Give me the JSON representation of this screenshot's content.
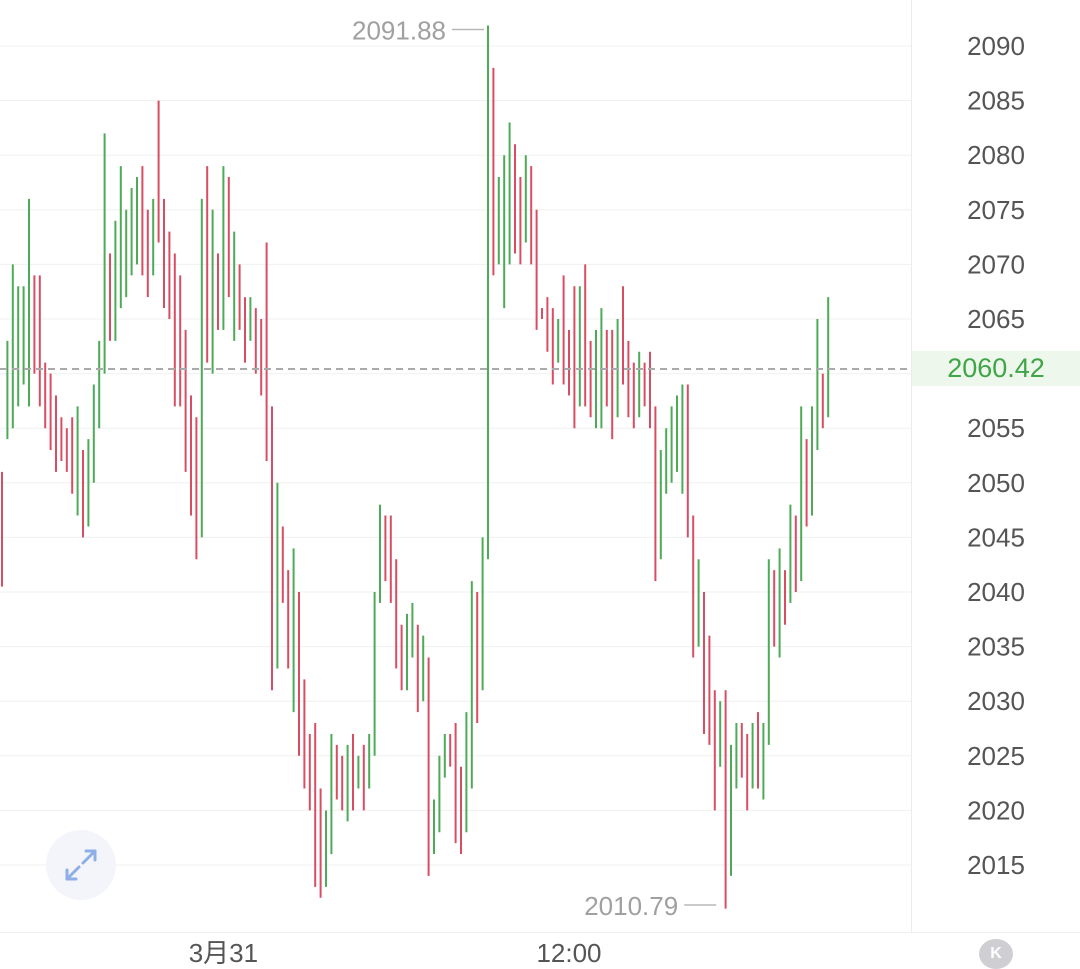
{
  "chart_data": {
    "type": "ohlc",
    "title": "",
    "y_ticks": [
      2015,
      2020,
      2025,
      2030,
      2035,
      2040,
      2045,
      2050,
      2055,
      2060,
      2065,
      2070,
      2075,
      2080,
      2085,
      2090
    ],
    "ylim": [
      2005.5,
      2093.5
    ],
    "x_labels": [
      {
        "label": "3月31",
        "index": 41
      },
      {
        "label": "12:00",
        "index": 105
      }
    ],
    "grid": "horizontal",
    "current_price": 2060.42,
    "current_price_label": "2060.42",
    "high_marker": {
      "label": "2091.88",
      "value": 2091.88,
      "index": 90
    },
    "low_marker": {
      "label": "2010.79",
      "value": 2010.79,
      "index": 133
    },
    "up_color": "#4daa57",
    "down_color": "#d94d63",
    "bars": [
      [
        2047,
        2040.5,
        2051,
        2041.5
      ],
      [
        2058,
        2054,
        2063,
        2060
      ],
      [
        2061,
        2055,
        2070,
        2063
      ],
      [
        2063,
        2057,
        2068,
        2065
      ],
      [
        2064,
        2059,
        2068,
        2066
      ],
      [
        2065,
        2057,
        2076,
        2068
      ],
      [
        2068,
        2060,
        2069,
        2061
      ],
      [
        2064,
        2057,
        2069,
        2059
      ],
      [
        2059,
        2055,
        2061,
        2057.5
      ],
      [
        2057.5,
        2053,
        2060,
        2055
      ],
      [
        2055,
        2051,
        2058,
        2054
      ],
      [
        2054,
        2052,
        2056,
        2053
      ],
      [
        2053,
        2051,
        2055,
        2052.5
      ],
      [
        2052.5,
        2049,
        2056,
        2050
      ],
      [
        2050,
        2047,
        2057,
        2053
      ],
      [
        2053,
        2045,
        2053,
        2049
      ],
      [
        2050,
        2046,
        2054,
        2052
      ],
      [
        2052,
        2050,
        2059,
        2057
      ],
      [
        2057,
        2055,
        2063,
        2062
      ],
      [
        2062,
        2060,
        2082,
        2077
      ],
      [
        2068,
        2063,
        2071,
        2066
      ],
      [
        2066,
        2063,
        2074,
        2071
      ],
      [
        2070,
        2066,
        2079,
        2072
      ],
      [
        2072,
        2067,
        2075,
        2073
      ],
      [
        2073,
        2069,
        2077,
        2074
      ],
      [
        2074,
        2070,
        2078,
        2075
      ],
      [
        2075,
        2069,
        2079,
        2073
      ],
      [
        2073,
        2067,
        2075,
        2072
      ],
      [
        2072,
        2069,
        2076,
        2074
      ],
      [
        2074,
        2072,
        2085,
        2073
      ],
      [
        2073,
        2066,
        2076,
        2071
      ],
      [
        2071,
        2065,
        2073,
        2070
      ],
      [
        2070,
        2057,
        2071,
        2059
      ],
      [
        2059,
        2057,
        2069,
        2058
      ],
      [
        2058,
        2051,
        2064,
        2053
      ],
      [
        2053,
        2047,
        2058,
        2049
      ],
      [
        2049,
        2043,
        2056,
        2045
      ],
      [
        2045,
        2048,
        2076,
        2075
      ],
      [
        2075,
        2061,
        2079,
        2063
      ],
      [
        2063,
        2060,
        2075,
        2070
      ],
      [
        2070,
        2064,
        2071,
        2066
      ],
      [
        2066,
        2064,
        2079,
        2077
      ],
      [
        2077,
        2067,
        2078,
        2068
      ],
      [
        2068,
        2063,
        2073,
        2070
      ],
      [
        2070,
        2064,
        2070,
        2067
      ],
      [
        2067,
        2061,
        2067,
        2063
      ],
      [
        2063,
        2065,
        2067,
        2066
      ],
      [
        2066,
        2060,
        2066,
        2061
      ],
      [
        2061,
        2058,
        2065,
        2059
      ],
      [
        2059,
        2052,
        2072,
        2055
      ],
      [
        2055,
        2031,
        2057,
        2033
      ],
      [
        2033,
        2035,
        2050,
        2043
      ],
      [
        2043,
        2039,
        2046,
        2041
      ],
      [
        2041,
        2033,
        2042,
        2034
      ],
      [
        2034,
        2029,
        2044,
        2039
      ],
      [
        2039,
        2025,
        2040,
        2030
      ],
      [
        2030,
        2022,
        2032,
        2026
      ],
      [
        2026,
        2020,
        2027,
        2022
      ],
      [
        2022,
        2013,
        2028,
        2017
      ],
      [
        2017,
        2012,
        2022,
        2014
      ],
      [
        2014,
        2013,
        2020,
        2016
      ],
      [
        2016,
        2018,
        2027,
        2025
      ],
      [
        2025,
        2021,
        2026,
        2023
      ],
      [
        2023,
        2020,
        2025,
        2022
      ],
      [
        2022,
        2019,
        2026,
        2024
      ],
      [
        2024,
        2020,
        2027,
        2023
      ],
      [
        2023,
        2022,
        2025,
        2024
      ],
      [
        2024,
        2020,
        2026,
        2022
      ],
      [
        2022,
        2024,
        2027,
        2025
      ],
      [
        2025,
        2026,
        2040,
        2039
      ],
      [
        2039,
        2044,
        2048,
        2045
      ],
      [
        2045,
        2041,
        2047,
        2043
      ],
      [
        2043,
        2039,
        2047,
        2041
      ],
      [
        2041,
        2033,
        2043,
        2035
      ],
      [
        2035,
        2031,
        2037,
        2033
      ],
      [
        2033,
        2031,
        2038,
        2036
      ],
      [
        2036,
        2034,
        2039,
        2037
      ],
      [
        2037,
        2029,
        2037,
        2032
      ],
      [
        2032,
        2030,
        2036,
        2034
      ],
      [
        2034,
        2014,
        2032,
        2016
      ],
      [
        2016,
        2017,
        2021,
        2018
      ],
      [
        2018,
        2021,
        2025,
        2023
      ],
      [
        2023,
        2023,
        2027,
        2026
      ],
      [
        2026,
        2024,
        2027,
        2025
      ],
      [
        2025,
        2017,
        2028,
        2019
      ],
      [
        2019,
        2016,
        2024,
        2018
      ],
      [
        2018,
        2020,
        2029,
        2023
      ],
      [
        2023,
        2022,
        2041,
        2040
      ],
      [
        2040,
        2028,
        2039,
        2031
      ],
      [
        2031,
        2037,
        2045,
        2043
      ],
      [
        2043,
        2058,
        2091.88,
        2088
      ],
      [
        2088,
        2069,
        2082,
        2071
      ],
      [
        2071,
        2070,
        2078,
        2072
      ],
      [
        2072,
        2066,
        2080,
        2074
      ],
      [
        2074,
        2070,
        2083,
        2078
      ],
      [
        2078,
        2071,
        2081,
        2076
      ],
      [
        2076,
        2070,
        2078,
        2073
      ],
      [
        2073,
        2072,
        2080,
        2077
      ],
      [
        2077,
        2070,
        2079,
        2074
      ],
      [
        2074,
        2064,
        2075,
        2066
      ],
      [
        2066,
        2065,
        2066,
        2065.5
      ],
      [
        2065.5,
        2062,
        2067,
        2064
      ],
      [
        2064,
        2059,
        2066,
        2061
      ],
      [
        2061,
        2061,
        2065,
        2063
      ],
      [
        2063,
        2059,
        2069,
        2062
      ],
      [
        2062,
        2058,
        2064,
        2060
      ],
      [
        2060,
        2055,
        2068,
        2057
      ],
      [
        2057,
        2058,
        2068,
        2065
      ],
      [
        2065,
        2057,
        2070,
        2059
      ],
      [
        2059,
        2056,
        2063,
        2058
      ],
      [
        2058,
        2055,
        2064,
        2058.5
      ],
      [
        2058.5,
        2055,
        2066,
        2061
      ],
      [
        2061,
        2057,
        2064,
        2059
      ],
      [
        2059,
        2054,
        2064,
        2056
      ],
      [
        2056,
        2057,
        2065,
        2063
      ],
      [
        2063,
        2059,
        2068,
        2061
      ],
      [
        2061,
        2056,
        2063,
        2058
      ],
      [
        2058,
        2055,
        2061,
        2057
      ],
      [
        2057,
        2056,
        2062,
        2059
      ],
      [
        2059,
        2057,
        2061,
        2058
      ],
      [
        2058,
        2055,
        2062,
        2056
      ],
      [
        2056,
        2041,
        2057,
        2043
      ],
      [
        2043,
        2047,
        2053,
        2050
      ],
      [
        2050,
        2049,
        2055,
        2052
      ],
      [
        2052,
        2050,
        2057,
        2054
      ],
      [
        2054,
        2051,
        2058,
        2055
      ],
      [
        2055,
        2049,
        2059,
        2057
      ],
      [
        2057,
        2045,
        2059,
        2047
      ],
      [
        2047,
        2034,
        2047,
        2038
      ],
      [
        2038,
        2035,
        2043,
        2040
      ],
      [
        2040,
        2027,
        2037,
        2033
      ],
      [
        2033,
        2026,
        2036,
        2030
      ],
      [
        2030,
        2020,
        2031,
        2025
      ],
      [
        2025,
        2024,
        2030,
        2027
      ],
      [
        2027,
        2011,
        2031,
        2014
      ],
      [
        2014,
        2016,
        2026,
        2022
      ],
      [
        2022,
        2024,
        2028,
        2027
      ],
      [
        2027,
        2023,
        2028,
        2025
      ],
      [
        2025,
        2020,
        2027,
        2022
      ],
      [
        2022,
        2023,
        2028,
        2026
      ],
      [
        2026,
        2022,
        2029,
        2024
      ],
      [
        2024,
        2021,
        2028,
        2026
      ],
      [
        2026,
        2033,
        2043,
        2042
      ],
      [
        2042,
        2035,
        2042,
        2038
      ],
      [
        2038,
        2034,
        2044,
        2040
      ],
      [
        2040,
        2037,
        2042,
        2039
      ],
      [
        2039,
        2040,
        2048,
        2046
      ],
      [
        2046,
        2040,
        2047,
        2044
      ],
      [
        2044,
        2041,
        2057,
        2054
      ],
      [
        2054,
        2046,
        2054,
        2047
      ],
      [
        2047,
        2049,
        2057,
        2055
      ],
      [
        2055,
        2053,
        2065,
        2058
      ],
      [
        2058,
        2055,
        2060,
        2056
      ],
      [
        2056,
        2058,
        2067,
        2060.42
      ]
    ]
  },
  "price_tag": {
    "value": "2060.42",
    "color": "#3fa547"
  },
  "controls": {
    "expand_icon": "expand-arrows-icon",
    "kline_button_label": "K"
  }
}
